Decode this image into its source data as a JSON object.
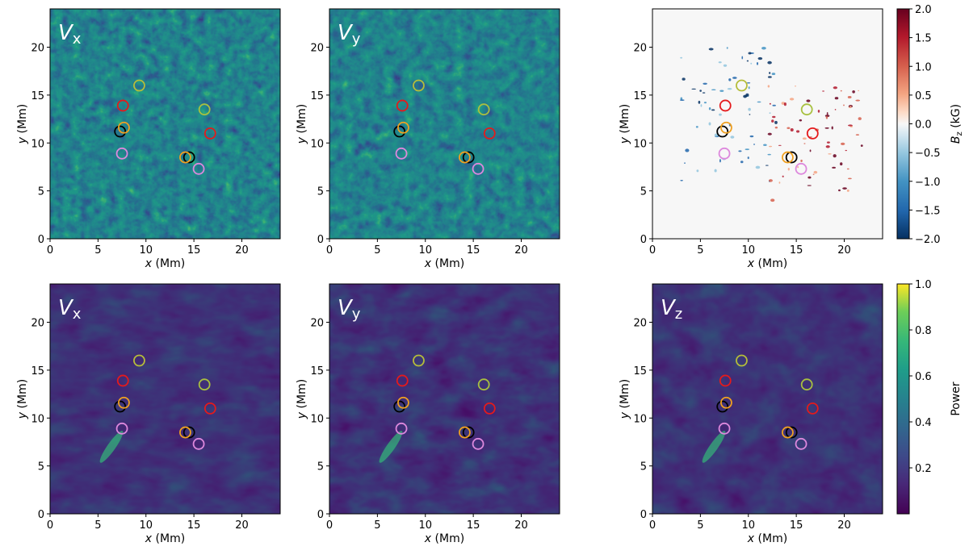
{
  "chart_data": {
    "type": "heatmap",
    "x_range": [
      0,
      24
    ],
    "y_range": [
      0,
      24
    ],
    "x_ticks": [
      0,
      5,
      10,
      15,
      20
    ],
    "y_ticks": [
      0,
      5,
      10,
      15,
      20
    ],
    "xlabel_var": "x",
    "ylabel_var": "y",
    "unit": "(Mm)",
    "panels": [
      {
        "id": "top-vx",
        "label_main": "V",
        "label_sub": "x",
        "kind": "velocity"
      },
      {
        "id": "top-vy",
        "label_main": "V",
        "label_sub": "y",
        "kind": "velocity"
      },
      {
        "id": "top-bz",
        "label_main": "",
        "label_sub": "",
        "kind": "magnetogram"
      },
      {
        "id": "bottom-vx",
        "label_main": "V",
        "label_sub": "x",
        "kind": "power"
      },
      {
        "id": "bottom-vy",
        "label_main": "V",
        "label_sub": "y",
        "kind": "power"
      },
      {
        "id": "bottom-vz",
        "label_main": "V",
        "label_sub": "z",
        "kind": "power"
      }
    ],
    "markers": [
      {
        "x": 9.3,
        "y": 16.0,
        "color": "#b5bd3a"
      },
      {
        "x": 7.6,
        "y": 13.9,
        "color": "#e41a1c"
      },
      {
        "x": 7.3,
        "y": 11.2,
        "color": "#000000"
      },
      {
        "x": 7.7,
        "y": 11.6,
        "color": "#f0a020"
      },
      {
        "x": 7.5,
        "y": 8.9,
        "color": "#dd88dd"
      },
      {
        "x": 16.1,
        "y": 13.5,
        "color": "#a8c040"
      },
      {
        "x": 16.7,
        "y": 11.0,
        "color": "#e41a1c"
      },
      {
        "x": 14.5,
        "y": 8.5,
        "color": "#000000"
      },
      {
        "x": 14.1,
        "y": 8.5,
        "color": "#f0a020"
      },
      {
        "x": 15.5,
        "y": 7.3,
        "color": "#dd88dd"
      }
    ],
    "colorbar_bz": {
      "label_main": "B",
      "label_sub": "z",
      "label_unit": "(kG)",
      "range": [
        -2.0,
        2.0
      ],
      "ticks": [
        "2.0",
        "1.5",
        "1.0",
        "0.5",
        "0.0",
        "−0.5",
        "−1.0",
        "−1.5",
        "−2.0"
      ],
      "colormap": "RdBu_r"
    },
    "colorbar_power": {
      "label": "Power",
      "range": [
        0.0,
        1.0
      ],
      "ticks": [
        "1.0",
        "0.8",
        "0.6",
        "0.4",
        "0.2"
      ],
      "colormap": "viridis"
    }
  }
}
